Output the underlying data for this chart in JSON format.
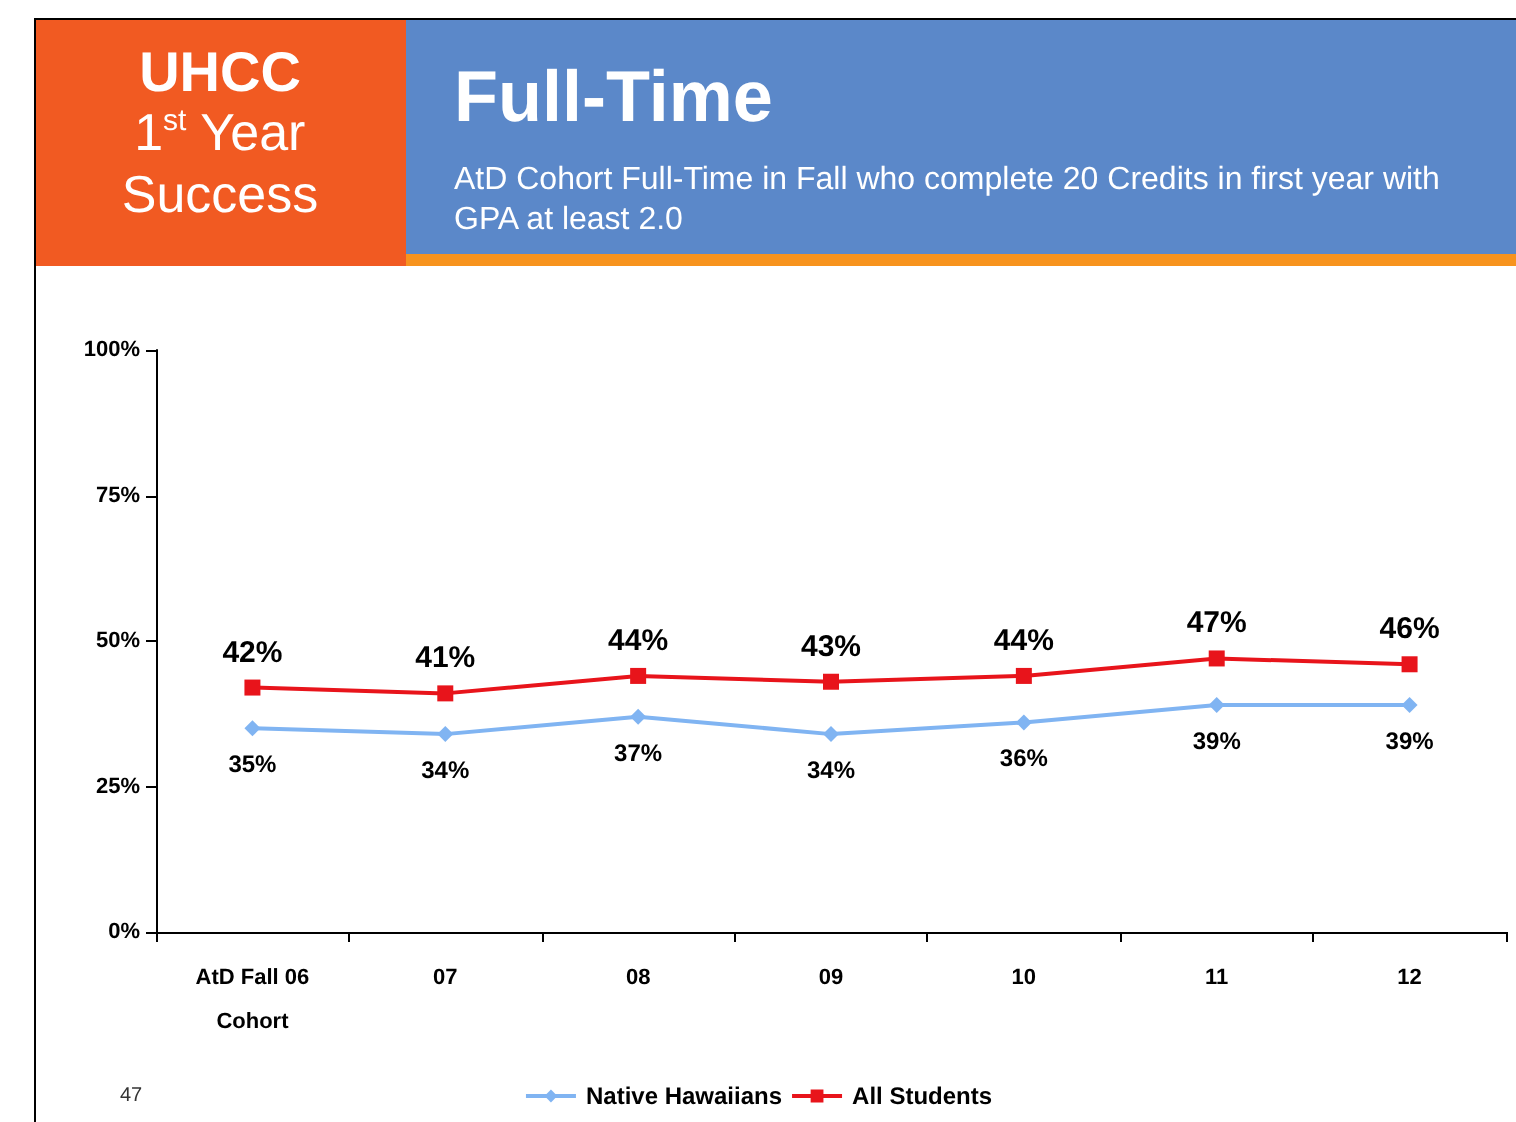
{
  "chart_data": {
    "type": "line",
    "title": "Full-Time",
    "subtitle": "AtD Cohort Full-Time in Fall who complete 20 Credits in first year with GPA at least 2.0",
    "annotations": [
      "UHCC\n1$^{st}$ Year\nSuccess",
      "47"
    ],
    "categories": [
      "AtD Fall 06\nCohort",
      "07",
      "08",
      "09",
      "10",
      "11",
      "12"
    ],
    "series": [
      {
        "name": "Native Hawaiians",
        "color": "#80b4f2",
        "marker": "diamond",
        "values": [
          35,
          34,
          37,
          34,
          36,
          39,
          39
        ],
        "value_labels": [
          "35%",
          "34%",
          "37%",
          "34%",
          "36%",
          "39%",
          "39%"
        ]
      },
      {
        "name": "All Students",
        "color": "#e8141b",
        "marker": "square",
        "values": [
          42,
          41,
          44,
          43,
          44,
          47,
          46
        ],
        "value_labels": [
          "42%",
          "41%",
          "44%",
          "43%",
          "44%",
          "47%",
          "46%"
        ]
      }
    ],
    "ylim": [
      0,
      100
    ],
    "yticks": [
      {
        "value": 0,
        "label": "0%"
      },
      {
        "value": 25,
        "label": "25%"
      },
      {
        "value": 50,
        "label": "50%"
      },
      {
        "value": 75,
        "label": "75%"
      },
      {
        "value": 100,
        "label": "100%"
      }
    ],
    "grid": false,
    "legend": "bottom",
    "line_style": "solid"
  }
}
